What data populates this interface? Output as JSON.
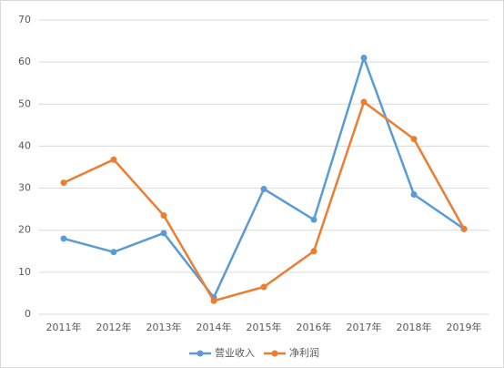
{
  "chart_data": {
    "type": "line",
    "categories": [
      "2011年",
      "2012年",
      "2013年",
      "2014年",
      "2015年",
      "2016年",
      "2017年",
      "2018年",
      "2019年"
    ],
    "series": [
      {
        "name": "营业收入",
        "color": "#5b9bd5",
        "values": [
          18,
          14.8,
          19.3,
          4,
          29.8,
          22.5,
          61,
          28.5,
          20.3
        ]
      },
      {
        "name": "净利润",
        "color": "#ed7d31",
        "values": [
          31.3,
          36.8,
          23.5,
          3.2,
          6.5,
          15,
          50.5,
          41.7,
          20.3
        ]
      }
    ],
    "ylim": [
      0,
      70
    ],
    "yticks": [
      0,
      10,
      20,
      30,
      40,
      50,
      60,
      70
    ],
    "grid": true,
    "legend": "bottom"
  }
}
